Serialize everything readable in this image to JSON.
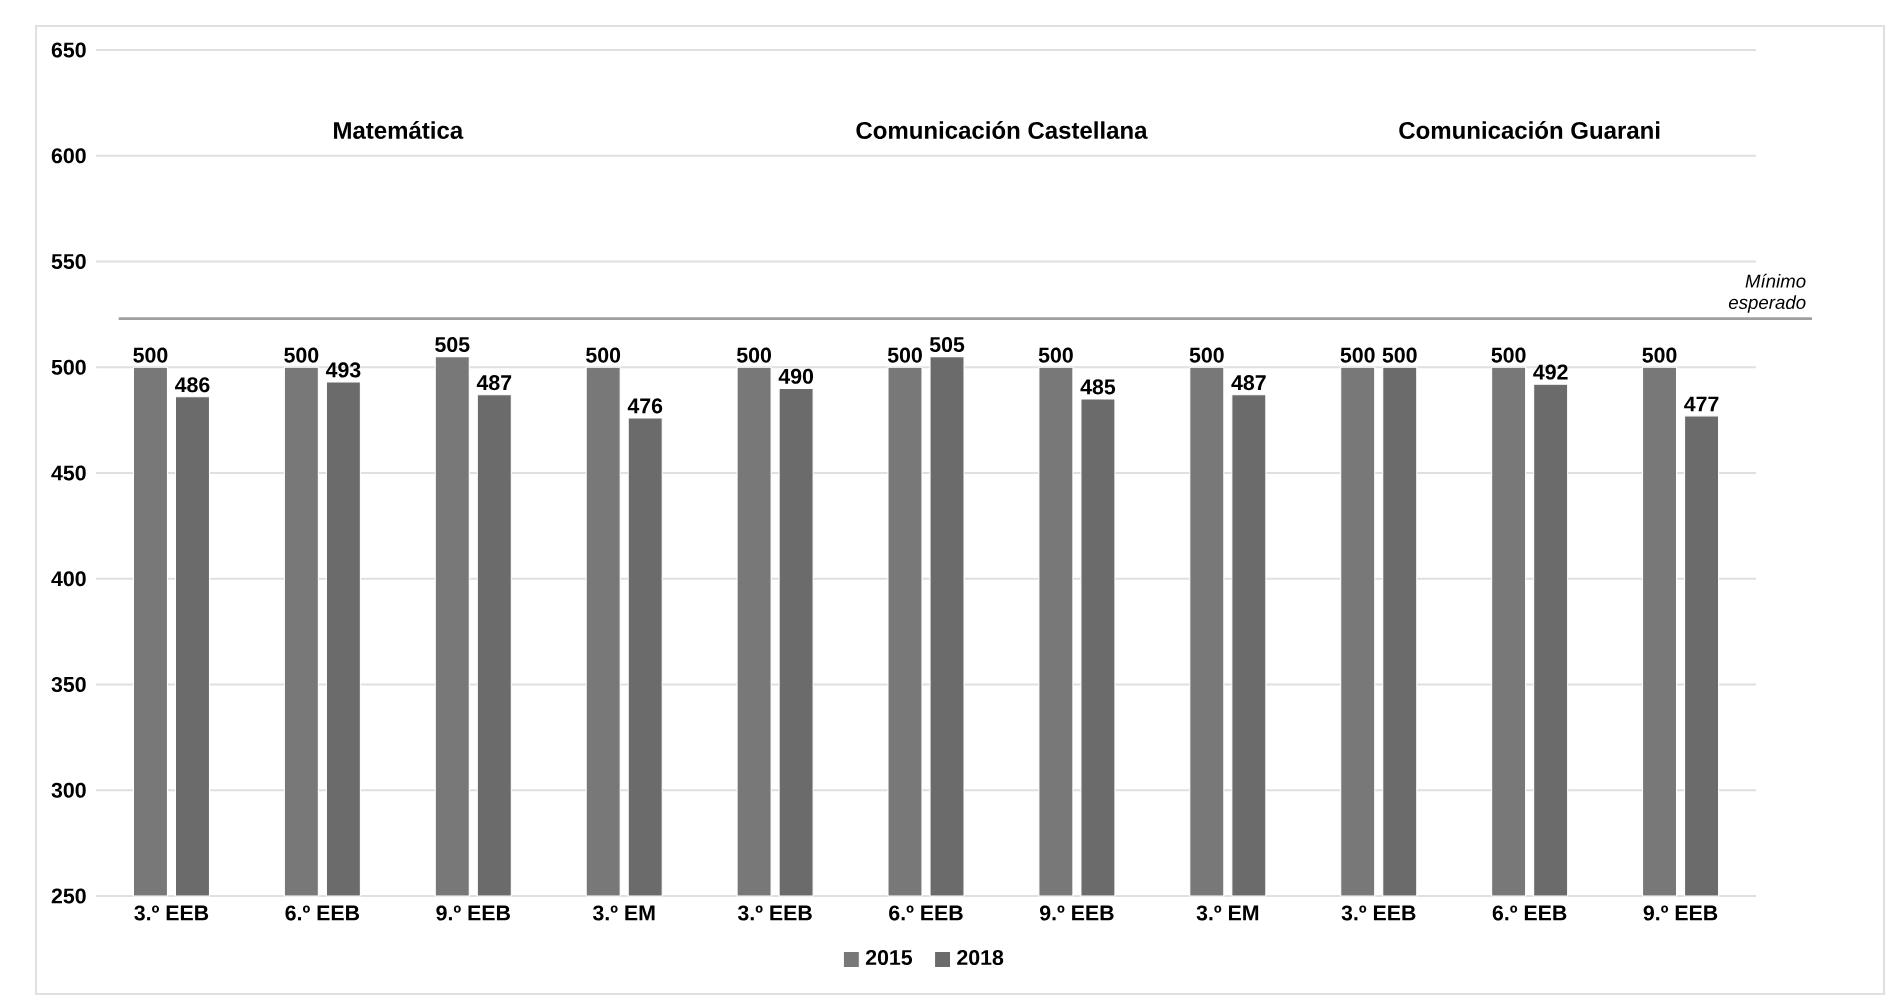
{
  "chart_data": {
    "type": "bar",
    "categories": [
      "3.º EEB",
      "6.º EEB",
      "9.º EEB",
      "3.º EM",
      "3.º EEB",
      "6.º EEB",
      "9.º EEB",
      "3.º EM",
      "3.º EEB",
      "6.º EEB",
      "9.º EEB"
    ],
    "series": [
      {
        "name": "2015",
        "color": "#787878",
        "values": [
          500,
          500,
          505,
          500,
          500,
          500,
          500,
          500,
          500,
          500,
          500
        ]
      },
      {
        "name": "2018",
        "color": "#6b6b6b",
        "values": [
          486,
          493,
          487,
          476,
          490,
          505,
          485,
          487,
          500,
          492,
          477
        ]
      }
    ],
    "ylim": [
      250,
      650
    ],
    "yticks": [
      250,
      300,
      350,
      400,
      450,
      500,
      550,
      600,
      650
    ],
    "grid": "y",
    "legend": "bottom",
    "data_labels": true,
    "ref_lines": [
      {
        "axis": "y",
        "value": 523,
        "label": "Mínimo esperado",
        "color": "#a0a0a0"
      }
    ],
    "annotations": [
      "Matemática",
      "Comunicación  Castellana",
      "Comunicación  Guarani"
    ]
  }
}
